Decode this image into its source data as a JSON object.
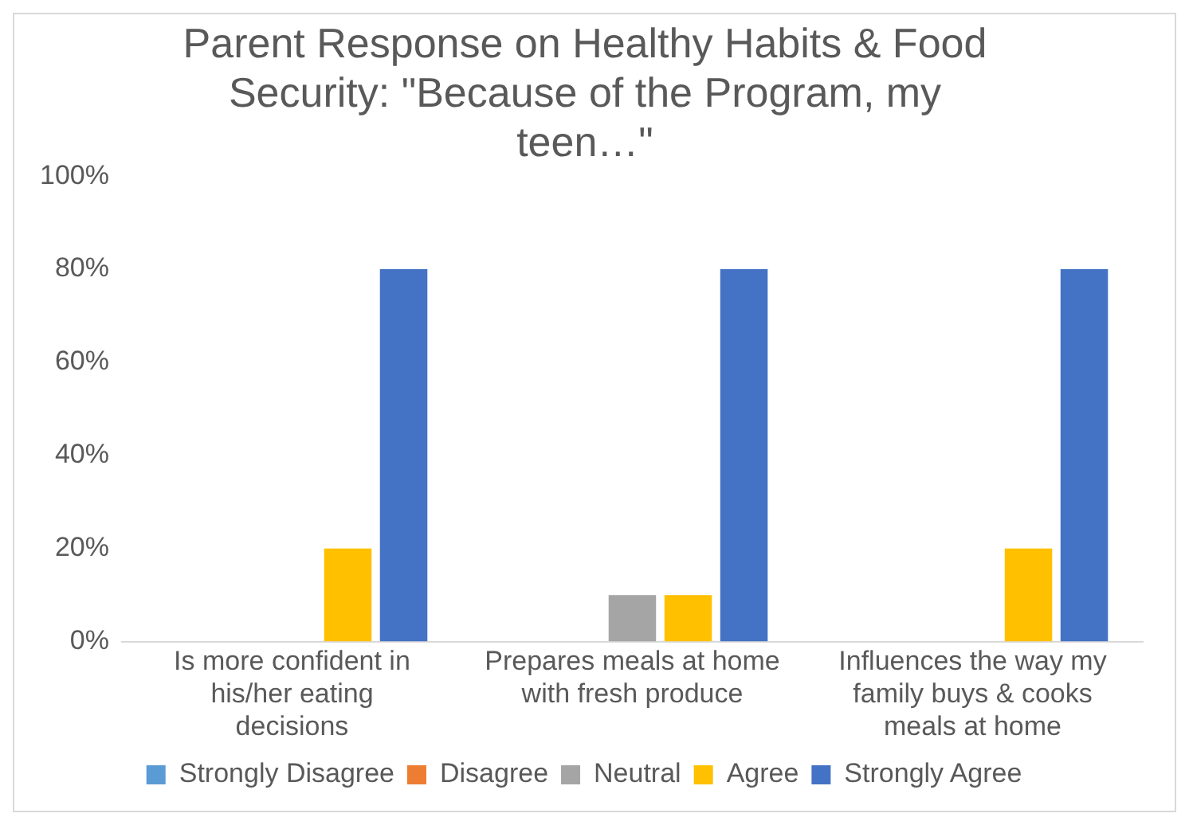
{
  "chart_data": {
    "type": "bar",
    "title": "Parent Response on Healthy Habits & Food Security: \"Because of the Program, my teen…\"",
    "categories": [
      "Is more confident in his/her eating decisions",
      "Prepares meals at home with fresh produce",
      "Influences the way my family buys & cooks meals at home"
    ],
    "series": [
      {
        "name": "Strongly Disagree",
        "color": "#5b9bd5",
        "values": [
          0,
          0,
          0
        ]
      },
      {
        "name": "Disagree",
        "color": "#ed7d31",
        "values": [
          0,
          0,
          0
        ]
      },
      {
        "name": "Neutral",
        "color": "#a5a5a5",
        "values": [
          0,
          10,
          0
        ]
      },
      {
        "name": "Agree",
        "color": "#ffc000",
        "values": [
          20,
          10,
          20
        ]
      },
      {
        "name": "Strongly Agree",
        "color": "#4472c4",
        "values": [
          80,
          80,
          80
        ]
      }
    ],
    "ylim": [
      0,
      100
    ],
    "yticks": [
      {
        "value": 0,
        "label": "0%"
      },
      {
        "value": 20,
        "label": "20%"
      },
      {
        "value": 40,
        "label": "40%"
      },
      {
        "value": 60,
        "label": "60%"
      },
      {
        "value": 80,
        "label": "80%"
      },
      {
        "value": 100,
        "label": "100%"
      }
    ],
    "grid": false,
    "legend": "bottom"
  }
}
